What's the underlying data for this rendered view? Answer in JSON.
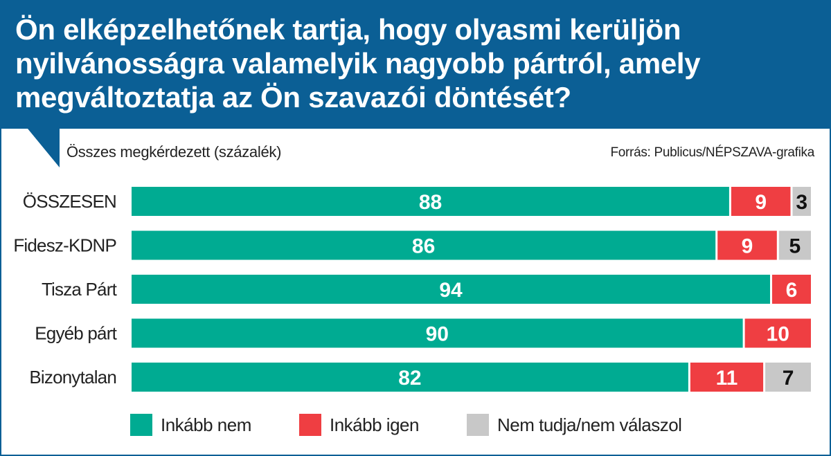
{
  "title": "Ön elképzelhetőnek tartja, hogy olyasmi kerüljön nyilvánosságra valamelyik nagyobb pártról, amely megváltoztatja az Ön szavazói döntését?",
  "subtitle": "Összes megkérdezett (százalék)",
  "source": "Forrás: Publicus/NÉPSZAVA-grafika",
  "colors": {
    "header": "#0b5f95",
    "inkabb_nem": "#00ab92",
    "inkabb_igen": "#ef3e42",
    "nem_tudja": "#c8c8c8"
  },
  "legend": [
    {
      "label": "Inkább nem",
      "color": "#00ab92"
    },
    {
      "label": "Inkább igen",
      "color": "#ef3e42"
    },
    {
      "label": "Nem tudja/nem válaszol",
      "color": "#c8c8c8"
    }
  ],
  "chart_data": {
    "type": "bar",
    "orientation": "horizontal",
    "stacked": true,
    "categories": [
      "ÖSSZESEN",
      "Fidesz-KDNP",
      "Tisza Párt",
      "Egyéb párt",
      "Bizonytalan"
    ],
    "series": [
      {
        "name": "Inkább nem",
        "color": "#00ab92",
        "values": [
          88,
          86,
          94,
          90,
          82
        ]
      },
      {
        "name": "Inkább igen",
        "color": "#ef3e42",
        "values": [
          9,
          9,
          6,
          10,
          11
        ]
      },
      {
        "name": "Nem tudja/nem válaszol",
        "color": "#c8c8c8",
        "values": [
          3,
          5,
          0,
          0,
          7
        ]
      }
    ],
    "xlim": [
      0,
      100
    ],
    "legend_position": "bottom",
    "grid": false
  }
}
